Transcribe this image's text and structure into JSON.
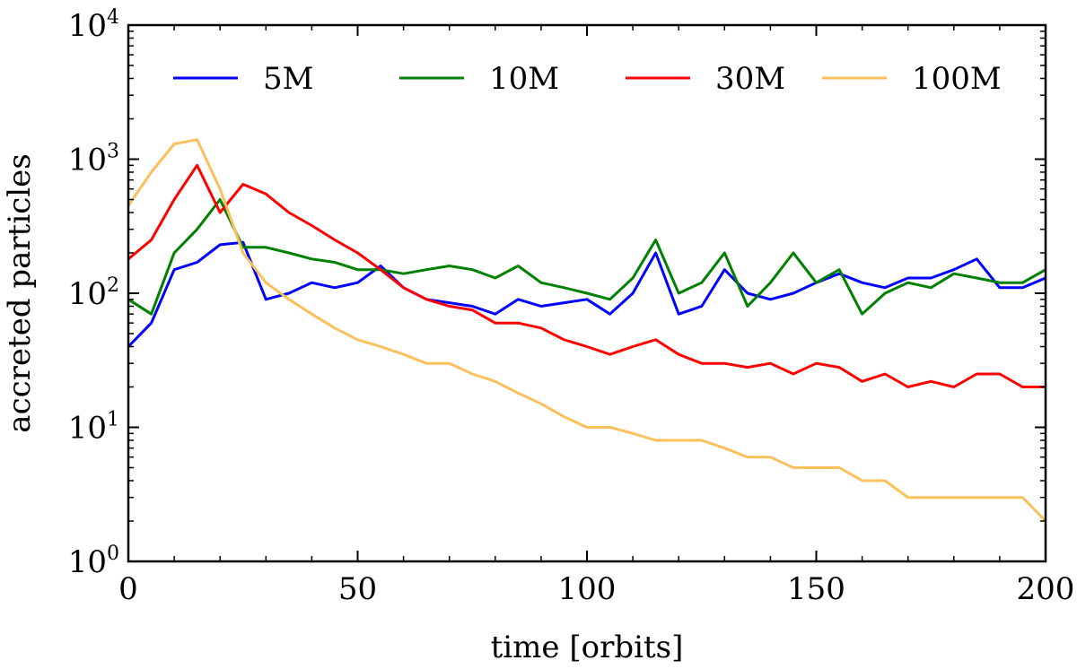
{
  "chart_data": {
    "type": "line",
    "xlabel": "time [orbits]",
    "ylabel": "accreted particles",
    "xlim": [
      0,
      200
    ],
    "ylim": [
      1,
      10000
    ],
    "yscale": "log",
    "xticks": [
      0,
      50,
      100,
      150,
      200
    ],
    "xtick_labels": [
      "0",
      "50",
      "100",
      "150",
      "200"
    ],
    "yticks": [
      1,
      10,
      100,
      1000,
      10000
    ],
    "ytick_labels": [
      {
        "base": "10",
        "exp": "0"
      },
      {
        "base": "10",
        "exp": "1"
      },
      {
        "base": "10",
        "exp": "2"
      },
      {
        "base": "10",
        "exp": "3"
      },
      {
        "base": "10",
        "exp": "4"
      }
    ],
    "legend_position": "top",
    "x": [
      0,
      5,
      10,
      15,
      20,
      25,
      30,
      35,
      40,
      45,
      50,
      55,
      60,
      65,
      70,
      75,
      80,
      85,
      90,
      95,
      100,
      105,
      110,
      115,
      120,
      125,
      130,
      135,
      140,
      145,
      150,
      155,
      160,
      165,
      170,
      175,
      180,
      185,
      190,
      195,
      200
    ],
    "series": [
      {
        "name": "5M",
        "color": "#0000ff",
        "values": [
          40,
          60,
          150,
          170,
          230,
          240,
          90,
          100,
          120,
          110,
          120,
          160,
          110,
          90,
          85,
          80,
          70,
          90,
          80,
          85,
          90,
          70,
          100,
          200,
          70,
          80,
          150,
          100,
          90,
          100,
          120,
          140,
          120,
          110,
          130,
          130,
          150,
          180,
          110,
          110,
          130
        ]
      },
      {
        "name": "10M",
        "color": "#008000",
        "values": [
          90,
          70,
          200,
          300,
          500,
          220,
          220,
          200,
          180,
          170,
          150,
          150,
          140,
          150,
          160,
          150,
          130,
          160,
          120,
          110,
          100,
          90,
          130,
          250,
          100,
          120,
          200,
          80,
          120,
          200,
          120,
          150,
          70,
          100,
          120,
          110,
          140,
          130,
          120,
          120,
          150
        ]
      },
      {
        "name": "30M",
        "color": "#ff0000",
        "values": [
          180,
          250,
          500,
          900,
          400,
          650,
          550,
          400,
          320,
          250,
          200,
          150,
          110,
          90,
          80,
          75,
          60,
          60,
          55,
          45,
          40,
          35,
          40,
          45,
          35,
          30,
          30,
          28,
          30,
          25,
          30,
          28,
          22,
          25,
          20,
          22,
          20,
          25,
          25,
          20,
          20
        ]
      },
      {
        "name": "100M",
        "color": "#f9c05c",
        "values": [
          450,
          800,
          1300,
          1400,
          600,
          200,
          120,
          90,
          70,
          55,
          45,
          40,
          35,
          30,
          30,
          25,
          22,
          18,
          15,
          12,
          10,
          10,
          9,
          8,
          8,
          8,
          7,
          6,
          6,
          5,
          5,
          5,
          4,
          4,
          3,
          3,
          3,
          3,
          3,
          3,
          2
        ]
      }
    ]
  }
}
